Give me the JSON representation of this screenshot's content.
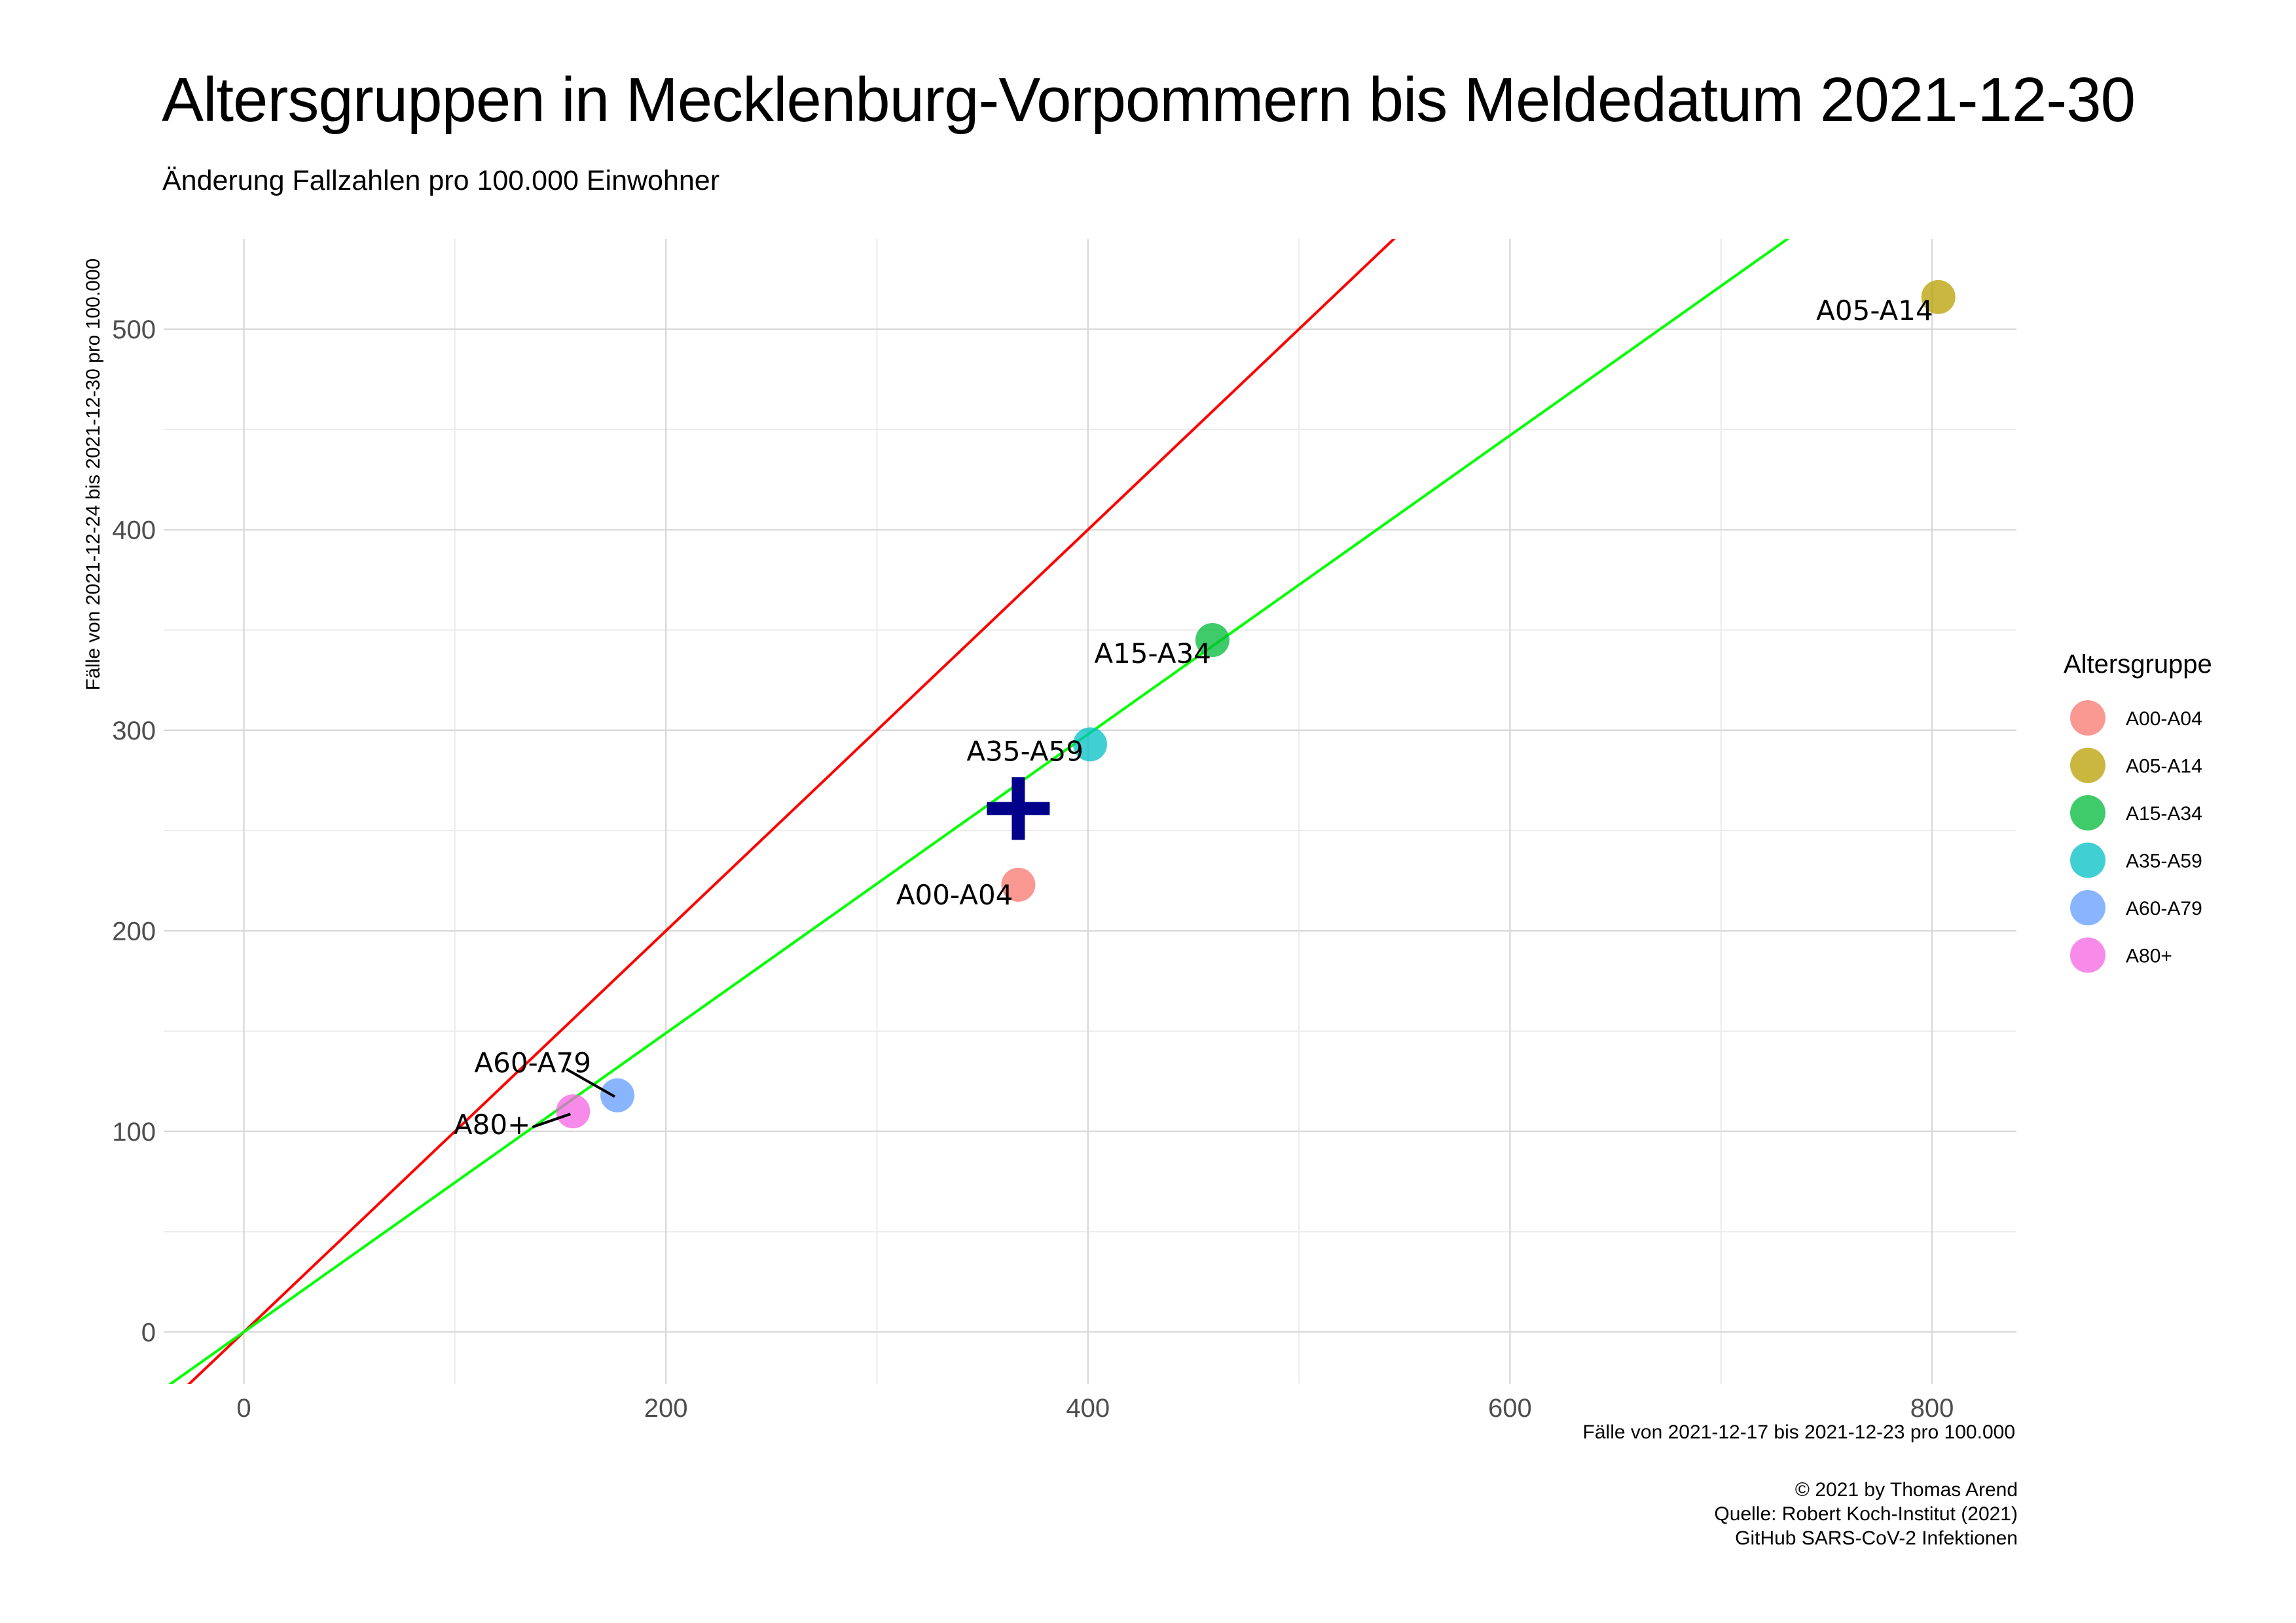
{
  "chart_data": {
    "type": "scatter",
    "title": "Altersgruppen in Mecklenburg-Vorpommern bis Meldedatum 2021-12-30",
    "subtitle": "Änderung Fallzahlen pro 100.000 Einwohner",
    "xlabel": "Fälle von 2021-12-17 bis 2021-12-23 pro 100.000",
    "ylabel": "Fälle von 2021-12-24 bis 2021-12-30 pro 100.000",
    "xlim": [
      -38,
      840
    ],
    "ylim": [
      -26,
      545
    ],
    "x_ticks": [
      0,
      200,
      400,
      600,
      800
    ],
    "y_ticks": [
      0,
      100,
      200,
      300,
      400,
      500
    ],
    "grid": true,
    "legend": {
      "title": "Altersgruppe",
      "position": "right"
    },
    "points": [
      {
        "label": "A00-A04",
        "x": 367,
        "y": 223,
        "color": "#F8766D"
      },
      {
        "label": "A05-A14",
        "x": 803,
        "y": 516,
        "color": "#B79F00"
      },
      {
        "label": "A15-A34",
        "x": 459,
        "y": 345,
        "color": "#00BA38"
      },
      {
        "label": "A35-A59",
        "x": 401,
        "y": 293,
        "color": "#00BFC4"
      },
      {
        "label": "A60-A79",
        "x": 177,
        "y": 118,
        "color": "#619CFF"
      },
      {
        "label": "A80+",
        "x": 156,
        "y": 110,
        "color": "#F564E3"
      }
    ],
    "mean_marker": {
      "x": 367,
      "y": 261,
      "color": "#00008B"
    },
    "reference_lines": [
      {
        "slope": 1.0,
        "intercept": 0,
        "color": "#FF0000"
      },
      {
        "slope": 0.745,
        "intercept": 0,
        "color": "#00FF00"
      }
    ]
  },
  "caption": {
    "line1": "© 2021 by Thomas Arend",
    "line2": "Quelle: Robert Koch-Institut (2021)",
    "line3": "GitHub SARS-CoV-2 Infektionen"
  }
}
